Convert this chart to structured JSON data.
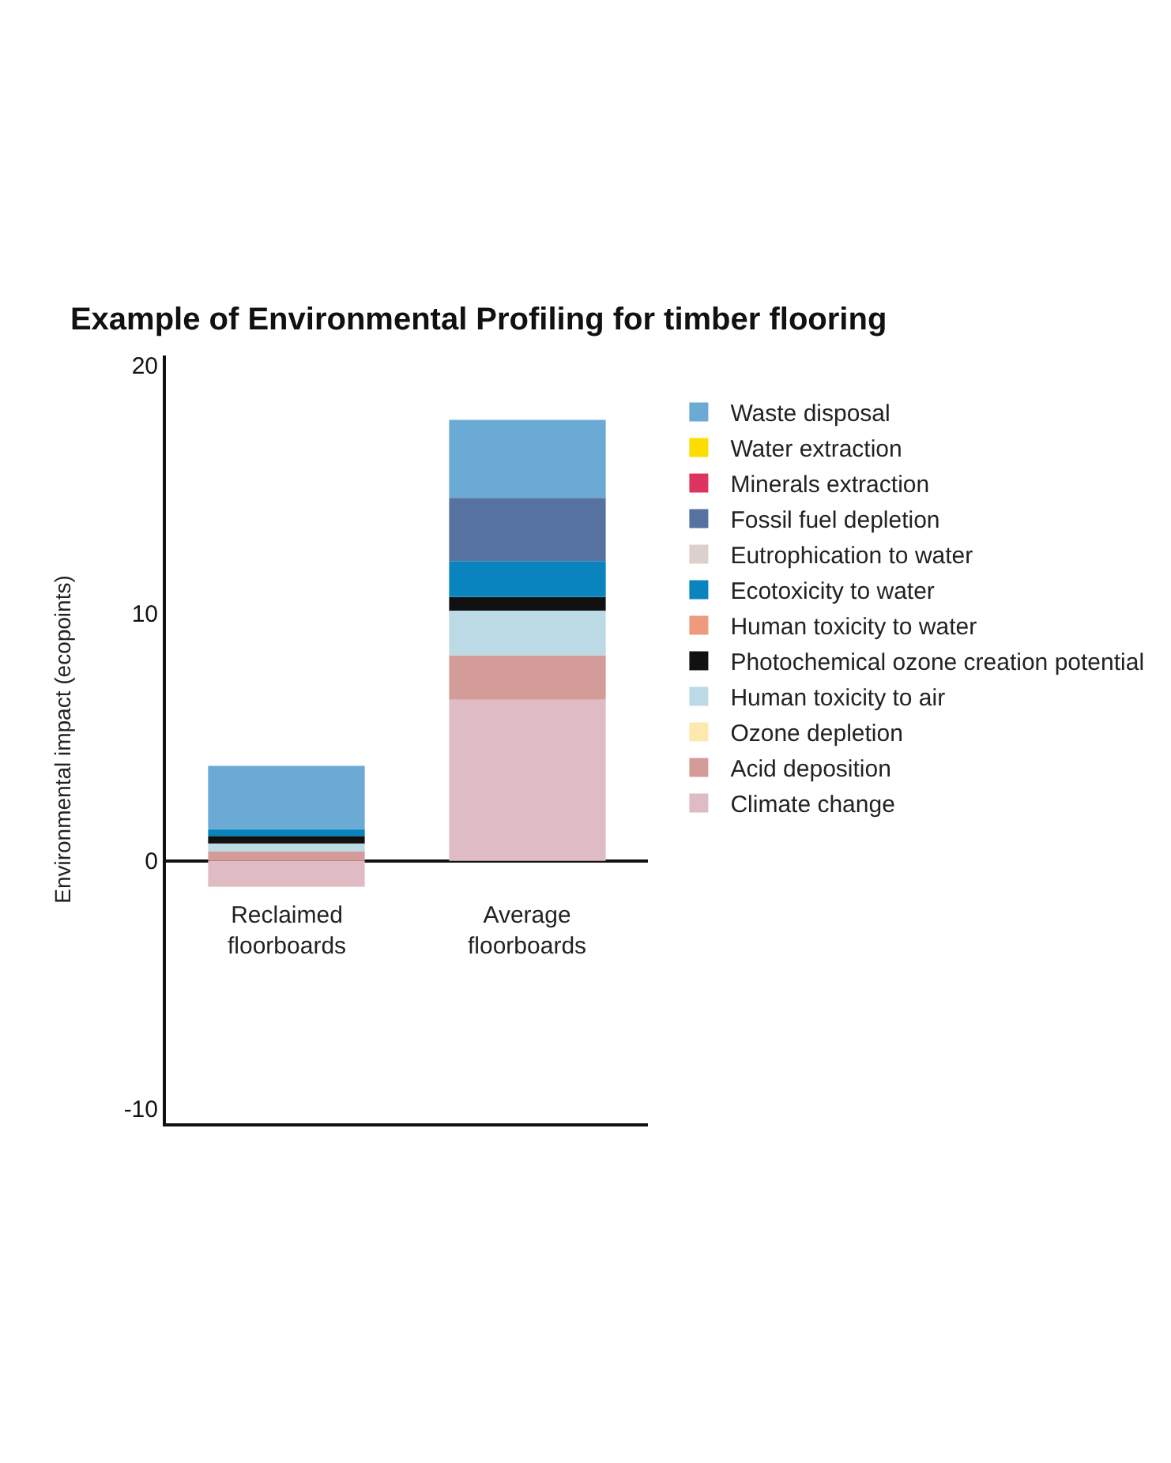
{
  "chart_data": {
    "type": "bar",
    "stacked": true,
    "title": "Example of Environmental Profiling for timber flooring",
    "ylabel": "Environmental impact (ecopoints)",
    "categories": [
      "Reclaimed floorboards",
      "Average floorboards"
    ],
    "ylim": [
      -10.6,
      20.4
    ],
    "yticks": [
      -10,
      0,
      10,
      20
    ],
    "grid": false,
    "legend": "right",
    "series": [
      {
        "name": "Climate change",
        "color": "#dfbcc4",
        "values": [
          -1.05,
          6.5
        ]
      },
      {
        "name": "Acid deposition",
        "color": "#d49c98",
        "values": [
          0.38,
          1.8
        ]
      },
      {
        "name": "Ozone depletion",
        "color": "#fde9b0",
        "values": [
          0,
          0
        ]
      },
      {
        "name": "Human toxicity to air",
        "color": "#bcd9e6",
        "values": [
          0.32,
          1.8
        ]
      },
      {
        "name": "Photochemical ozone creation potential",
        "color": "#111111",
        "values": [
          0.3,
          0.55
        ]
      },
      {
        "name": "Human toxicity to water",
        "color": "#ee9a7c",
        "values": [
          0,
          0
        ]
      },
      {
        "name": "Ecotoxicity to water",
        "color": "#0a84bf",
        "values": [
          0.28,
          1.45
        ]
      },
      {
        "name": "Eutrophication to water",
        "color": "#dcd0cc",
        "values": [
          0,
          0
        ]
      },
      {
        "name": "Fossil fuel depletion",
        "color": "#5672a0",
        "values": [
          0,
          2.55
        ]
      },
      {
        "name": "Minerals extraction",
        "color": "#de3560",
        "values": [
          0,
          0
        ]
      },
      {
        "name": "Water extraction",
        "color": "#fddc00",
        "values": [
          0,
          0
        ]
      },
      {
        "name": "Waste disposal",
        "color": "#6aaad5",
        "values": [
          2.55,
          3.15
        ]
      }
    ]
  }
}
